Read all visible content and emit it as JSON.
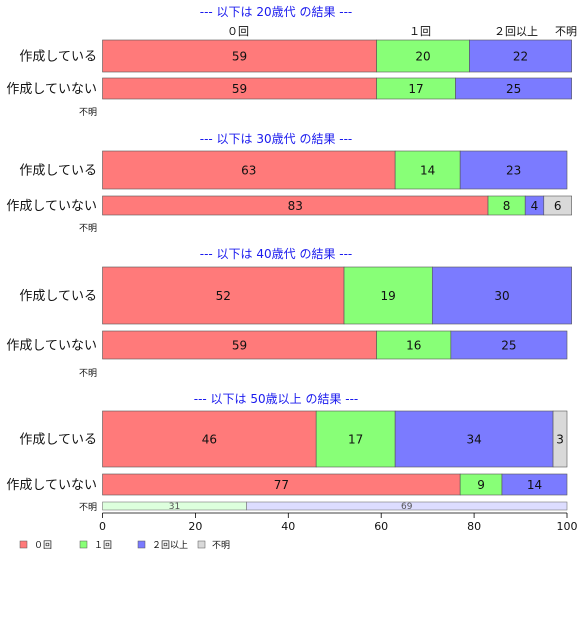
{
  "chart_data": {
    "type": "bar",
    "orientation": "horizontal",
    "stacked": true,
    "xlim": [
      0,
      100
    ],
    "xticks": [
      0,
      20,
      40,
      60,
      80,
      100
    ],
    "categories": [
      "０回",
      "１回",
      "２回以上",
      "不明"
    ],
    "colors": [
      "#ff7a7a",
      "#88ff77",
      "#7b7bff",
      "#d9d9d9"
    ],
    "header_labels": [
      "０回",
      "１回",
      "２回以上",
      "不明"
    ],
    "unknown_label": "不明",
    "legend": {
      "placement": "bottom-left",
      "entries": [
        "０回",
        "１回",
        "２回以上",
        "不明"
      ]
    },
    "sections": [
      {
        "title": "--- 以下は 20歳代 の結果 ---",
        "rows": [
          {
            "label": "作成している",
            "values": [
              59,
              20,
              22,
              0
            ]
          },
          {
            "label": "作成していない",
            "values": [
              59,
              17,
              25,
              0
            ]
          }
        ],
        "unknown_bar": null
      },
      {
        "title": "--- 以下は 30歳代 の結果 ---",
        "rows": [
          {
            "label": "作成している",
            "values": [
              63,
              14,
              23,
              0
            ]
          },
          {
            "label": "作成していない",
            "values": [
              83,
              8,
              4,
              6
            ]
          }
        ],
        "unknown_bar": null
      },
      {
        "title": "--- 以下は 40歳代 の結果 ---",
        "rows": [
          {
            "label": "作成している",
            "values": [
              52,
              19,
              30,
              0
            ]
          },
          {
            "label": "作成していない",
            "values": [
              59,
              16,
              25,
              0
            ]
          }
        ],
        "unknown_bar": null
      },
      {
        "title": "--- 以下は 50歳以上 の結果 ---",
        "rows": [
          {
            "label": "作成している",
            "values": [
              46,
              17,
              34,
              3
            ]
          },
          {
            "label": "作成していない",
            "values": [
              77,
              9,
              14,
              0
            ]
          }
        ],
        "unknown_bar": {
          "values": [
            31,
            69
          ],
          "colors": [
            "#ddffdd",
            "#ddddff"
          ]
        }
      }
    ]
  }
}
